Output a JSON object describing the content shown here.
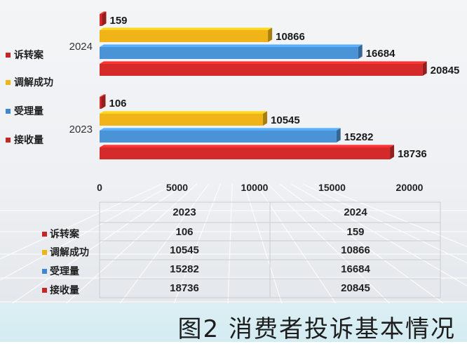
{
  "chart_data": {
    "type": "bar",
    "orientation": "horizontal",
    "categories": [
      "2023",
      "2024"
    ],
    "series": [
      {
        "name": "诉转案",
        "values": [
          106,
          159
        ],
        "color": "#d42a2a"
      },
      {
        "name": "调解成功",
        "values": [
          10545,
          10866
        ],
        "color": "#f1b418"
      },
      {
        "name": "受理量",
        "values": [
          15282,
          16684
        ],
        "color": "#4a93d6"
      },
      {
        "name": "接收量",
        "values": [
          18736,
          20845
        ],
        "color": "#d42a2a"
      }
    ],
    "xlim": [
      0,
      20000
    ],
    "xticks": [
      "0",
      "5000",
      "10000",
      "15000",
      "20000"
    ],
    "legend_position": "left",
    "grid": false
  },
  "legend_colors": [
    "#c62626",
    "#f0b416",
    "#3f86d0",
    "#c62626"
  ],
  "table": {
    "headers": [
      "2023",
      "2024"
    ],
    "rows": [
      {
        "label": "诉转案",
        "v2023": "106",
        "v2024": "159"
      },
      {
        "label": "调解成功",
        "v2023": "10545",
        "v2024": "10866"
      },
      {
        "label": "受理量",
        "v2023": "15282",
        "v2024": "16684"
      },
      {
        "label": "接收量",
        "v2023": "18736",
        "v2024": "20845"
      }
    ]
  },
  "caption": "图2  消费者投诉基本情况"
}
